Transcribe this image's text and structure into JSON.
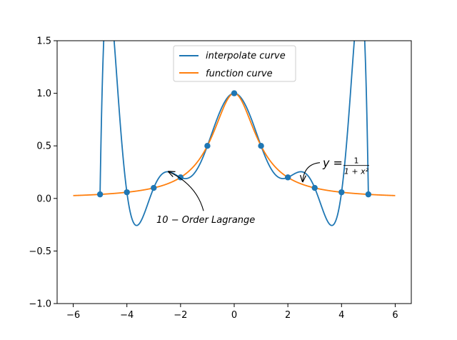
{
  "chart_data": {
    "type": "line",
    "title": "",
    "xlabel": "",
    "ylabel": "",
    "xlim": [
      -6.6,
      6.6
    ],
    "ylim": [
      -1.0,
      1.5
    ],
    "xticks": [
      -6,
      -4,
      -2,
      0,
      2,
      4,
      6
    ],
    "yticks": [
      -1.0,
      -0.5,
      0.0,
      0.5,
      1.0,
      1.5
    ],
    "xtick_labels": [
      "−6",
      "−4",
      "−2",
      "0",
      "2",
      "4",
      "6"
    ],
    "ytick_labels": [
      "−1.0",
      "−0.5",
      "0.0",
      "0.5",
      "1.0",
      "1.5"
    ],
    "grid": false,
    "legend_position": "top-center",
    "series": [
      {
        "name": "interpolate curve",
        "color": "#1f77b4",
        "domain": [
          -5,
          5
        ],
        "formula": "10th-order Lagrange interpolant of 1/(1+x^2) at x = -5..5"
      },
      {
        "name": "function curve",
        "color": "#ff7f0e",
        "domain": [
          -6,
          6
        ],
        "formula": "1/(1+x^2)"
      }
    ],
    "nodes": {
      "color": "#1f77b4",
      "x": [
        -5,
        -4,
        -3,
        -2,
        -1,
        0,
        1,
        2,
        3,
        4,
        5
      ],
      "y": [
        0.0385,
        0.0588,
        0.1,
        0.2,
        0.5,
        1.0,
        0.5,
        0.2,
        0.1,
        0.0588,
        0.0385
      ]
    },
    "annotations": [
      {
        "text": "10 − Order Lagrange",
        "text_x": -2.9,
        "text_y": -0.2,
        "target_x": -2.45,
        "target_y": 0.255
      },
      {
        "text": "y = ",
        "num": "1",
        "den": "1 + x²",
        "text_x": 3.3,
        "text_y": 0.3,
        "target_x": 2.55,
        "target_y": 0.16
      }
    ]
  }
}
